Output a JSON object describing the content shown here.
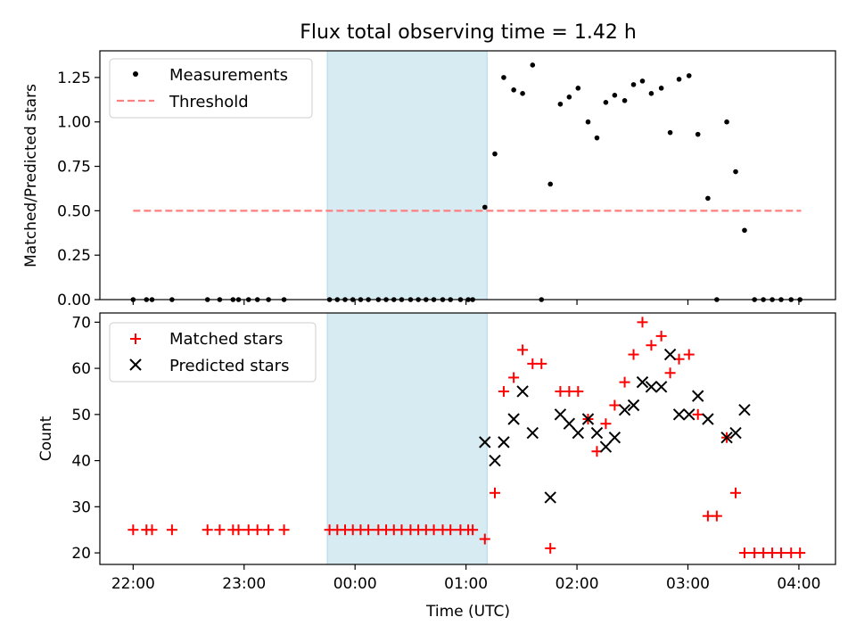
{
  "chart_data": {
    "type": "scatter",
    "title": "Flux total observing time = 1.42 h",
    "xlabel": "Time (UTC)",
    "x_ticks": [
      "22:00",
      "23:00",
      "00:00",
      "01:00",
      "02:00",
      "03:00",
      "04:00"
    ],
    "xlim_hours": [
      -0.3,
      6.33
    ],
    "observing_window_hours": [
      1.75,
      3.19
    ],
    "colors": {
      "matched": "#ff0000",
      "predicted": "#000000",
      "threshold": "#ff7f7f",
      "window": "#add8e6"
    },
    "top": {
      "ylabel": "Matched/Predicted stars",
      "ylim": [
        0,
        1.4
      ],
      "yticks": [
        "0.00",
        "0.25",
        "0.50",
        "0.75",
        "1.00",
        "1.25"
      ],
      "legend": {
        "placement": "upper-left",
        "measurements": "Measurements",
        "threshold": "Threshold"
      },
      "threshold": 0.5,
      "threshold_x": [
        0.0,
        6.02
      ],
      "measurements": [
        [
          0.0,
          0
        ],
        [
          0.12,
          0
        ],
        [
          0.17,
          0
        ],
        [
          0.35,
          0
        ],
        [
          0.67,
          0
        ],
        [
          0.78,
          0
        ],
        [
          0.9,
          0
        ],
        [
          0.95,
          0
        ],
        [
          1.04,
          0
        ],
        [
          1.12,
          0
        ],
        [
          1.22,
          0
        ],
        [
          1.36,
          0
        ],
        [
          1.77,
          0
        ],
        [
          1.84,
          0
        ],
        [
          1.91,
          0
        ],
        [
          1.98,
          0
        ],
        [
          2.05,
          0
        ],
        [
          2.12,
          0
        ],
        [
          2.21,
          0
        ],
        [
          2.28,
          0
        ],
        [
          2.35,
          0
        ],
        [
          2.42,
          0
        ],
        [
          2.5,
          0
        ],
        [
          2.57,
          0
        ],
        [
          2.64,
          0
        ],
        [
          2.71,
          0
        ],
        [
          2.79,
          0
        ],
        [
          2.86,
          0
        ],
        [
          2.95,
          0
        ],
        [
          3.02,
          0
        ],
        [
          3.06,
          0
        ],
        [
          3.17,
          0.52
        ],
        [
          3.26,
          0.82
        ],
        [
          3.34,
          1.25
        ],
        [
          3.43,
          1.18
        ],
        [
          3.51,
          1.16
        ],
        [
          3.6,
          1.32
        ],
        [
          3.68,
          0
        ],
        [
          3.76,
          0.65
        ],
        [
          3.85,
          1.1
        ],
        [
          3.93,
          1.14
        ],
        [
          4.01,
          1.19
        ],
        [
          4.1,
          1.0
        ],
        [
          4.18,
          0.91
        ],
        [
          4.26,
          1.11
        ],
        [
          4.34,
          1.15
        ],
        [
          4.43,
          1.12
        ],
        [
          4.51,
          1.21
        ],
        [
          4.59,
          1.23
        ],
        [
          4.67,
          1.16
        ],
        [
          4.76,
          1.19
        ],
        [
          4.84,
          0.94
        ],
        [
          4.92,
          1.24
        ],
        [
          5.01,
          1.26
        ],
        [
          5.09,
          0.93
        ],
        [
          5.18,
          0.57
        ],
        [
          5.26,
          0
        ],
        [
          5.35,
          1.0
        ],
        [
          5.43,
          0.72
        ],
        [
          5.51,
          0.39
        ],
        [
          5.6,
          0
        ],
        [
          5.68,
          0
        ],
        [
          5.76,
          0
        ],
        [
          5.84,
          0
        ],
        [
          5.93,
          0
        ],
        [
          6.01,
          0
        ]
      ]
    },
    "bottom": {
      "ylabel": "Count",
      "ylim": [
        17.5,
        72
      ],
      "yticks": [
        "20",
        "30",
        "40",
        "50",
        "60",
        "70"
      ],
      "legend": {
        "placement": "upper-left",
        "matched": "Matched stars",
        "predicted": "Predicted stars"
      },
      "matched": [
        [
          0.0,
          25
        ],
        [
          0.12,
          25
        ],
        [
          0.17,
          25
        ],
        [
          0.35,
          25
        ],
        [
          0.67,
          25
        ],
        [
          0.78,
          25
        ],
        [
          0.9,
          25
        ],
        [
          0.95,
          25
        ],
        [
          1.04,
          25
        ],
        [
          1.12,
          25
        ],
        [
          1.22,
          25
        ],
        [
          1.36,
          25
        ],
        [
          1.77,
          25
        ],
        [
          1.84,
          25
        ],
        [
          1.91,
          25
        ],
        [
          1.98,
          25
        ],
        [
          2.05,
          25
        ],
        [
          2.12,
          25
        ],
        [
          2.21,
          25
        ],
        [
          2.28,
          25
        ],
        [
          2.35,
          25
        ],
        [
          2.42,
          25
        ],
        [
          2.5,
          25
        ],
        [
          2.57,
          25
        ],
        [
          2.64,
          25
        ],
        [
          2.71,
          25
        ],
        [
          2.79,
          25
        ],
        [
          2.86,
          25
        ],
        [
          2.95,
          25
        ],
        [
          3.02,
          25
        ],
        [
          3.06,
          25
        ],
        [
          3.17,
          23
        ],
        [
          3.26,
          33
        ],
        [
          3.34,
          55
        ],
        [
          3.43,
          58
        ],
        [
          3.51,
          64
        ],
        [
          3.6,
          61
        ],
        [
          3.68,
          61
        ],
        [
          3.76,
          21
        ],
        [
          3.85,
          55
        ],
        [
          3.93,
          55
        ],
        [
          4.01,
          55
        ],
        [
          4.1,
          49
        ],
        [
          4.18,
          42
        ],
        [
          4.26,
          48
        ],
        [
          4.34,
          52
        ],
        [
          4.43,
          57
        ],
        [
          4.51,
          63
        ],
        [
          4.59,
          70
        ],
        [
          4.67,
          65
        ],
        [
          4.76,
          67
        ],
        [
          4.84,
          59
        ],
        [
          4.92,
          62
        ],
        [
          5.01,
          63
        ],
        [
          5.09,
          50
        ],
        [
          5.18,
          28
        ],
        [
          5.26,
          28
        ],
        [
          5.35,
          45
        ],
        [
          5.43,
          33
        ],
        [
          5.51,
          20
        ],
        [
          5.6,
          20
        ],
        [
          5.68,
          20
        ],
        [
          5.76,
          20
        ],
        [
          5.84,
          20
        ],
        [
          5.93,
          20
        ],
        [
          6.01,
          20
        ]
      ],
      "predicted": [
        [
          3.17,
          44
        ],
        [
          3.26,
          40
        ],
        [
          3.34,
          44
        ],
        [
          3.43,
          49
        ],
        [
          3.51,
          55
        ],
        [
          3.6,
          46
        ],
        [
          3.76,
          32
        ],
        [
          3.85,
          50
        ],
        [
          3.93,
          48
        ],
        [
          4.01,
          46
        ],
        [
          4.1,
          49
        ],
        [
          4.18,
          46
        ],
        [
          4.26,
          43
        ],
        [
          4.34,
          45
        ],
        [
          4.43,
          51
        ],
        [
          4.51,
          52
        ],
        [
          4.59,
          57
        ],
        [
          4.67,
          56
        ],
        [
          4.76,
          56
        ],
        [
          4.84,
          63
        ],
        [
          4.92,
          50
        ],
        [
          5.01,
          50
        ],
        [
          5.09,
          54
        ],
        [
          5.18,
          49
        ],
        [
          5.35,
          45
        ],
        [
          5.43,
          46
        ],
        [
          5.51,
          51
        ]
      ]
    }
  }
}
